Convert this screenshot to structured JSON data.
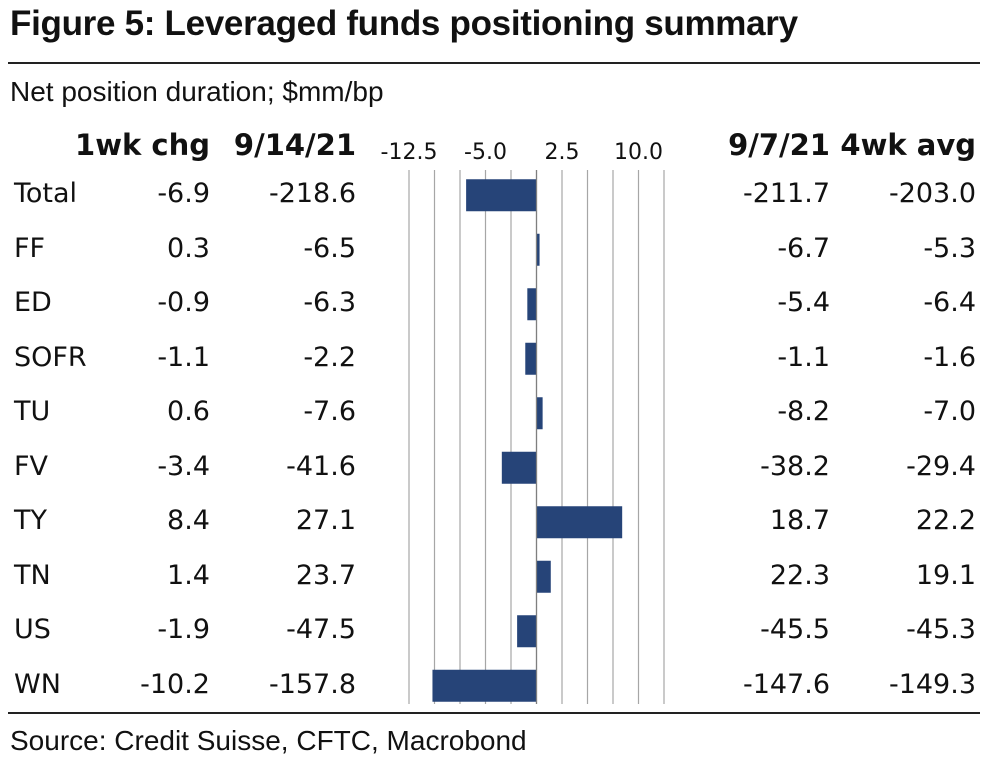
{
  "title": "Figure 5: Leveraged funds positioning summary",
  "subtitle": "Net position duration; $mm/bp",
  "source": "Source: Credit Suisse, CFTC, Macrobond",
  "columns": {
    "chg": "1wk chg",
    "current": "9/14/21",
    "previous": "9/7/21",
    "avg": "4wk avg"
  },
  "chart_data": {
    "type": "bar",
    "orientation": "horizontal",
    "title": "Figure 5: Leveraged funds positioning summary",
    "subtitle": "Net position duration; $mm/bp",
    "xlim": [
      -12.5,
      12.5
    ],
    "axis_ticks": [
      -12.5,
      -5.0,
      2.5,
      10.0
    ],
    "axis_tick_labels": [
      "-12.5",
      "-5.0",
      "2.5",
      "10.0"
    ],
    "gridlines": [
      -12.5,
      -10.0,
      -7.5,
      -5.0,
      -2.5,
      0,
      2.5,
      5.0,
      7.5,
      10.0,
      12.5
    ],
    "bar_series": "1wk chg",
    "bar_color": "#264478",
    "categories": [
      "Total",
      "FF",
      "ED",
      "SOFR",
      "TU",
      "FV",
      "TY",
      "TN",
      "US",
      "WN"
    ],
    "rows": [
      {
        "label": "Total",
        "chg": -6.9,
        "current": -218.6,
        "previous": -211.7,
        "avg": -203.0,
        "bar": -6.9
      },
      {
        "label": "FF",
        "chg": 0.3,
        "current": -6.5,
        "previous": -6.7,
        "avg": -5.3,
        "bar": 0.3
      },
      {
        "label": "ED",
        "chg": -0.9,
        "current": -6.3,
        "previous": -5.4,
        "avg": -6.4,
        "bar": -0.9
      },
      {
        "label": "SOFR",
        "chg": -1.1,
        "current": -2.2,
        "previous": -1.1,
        "avg": -1.6,
        "bar": -1.1
      },
      {
        "label": "TU",
        "chg": 0.6,
        "current": -7.6,
        "previous": -8.2,
        "avg": -7.0,
        "bar": 0.6
      },
      {
        "label": "FV",
        "chg": -3.4,
        "current": -41.6,
        "previous": -38.2,
        "avg": -29.4,
        "bar": -3.4
      },
      {
        "label": "TY",
        "chg": 8.4,
        "current": 27.1,
        "previous": 18.7,
        "avg": 22.2,
        "bar": 8.4
      },
      {
        "label": "TN",
        "chg": 1.4,
        "current": 23.7,
        "previous": 22.3,
        "avg": 19.1,
        "bar": 1.4
      },
      {
        "label": "US",
        "chg": -1.9,
        "current": -47.5,
        "previous": -45.5,
        "avg": -45.3,
        "bar": -1.9
      },
      {
        "label": "WN",
        "chg": -10.2,
        "current": -157.8,
        "previous": -147.6,
        "avg": -149.3,
        "bar": -10.2
      }
    ]
  }
}
